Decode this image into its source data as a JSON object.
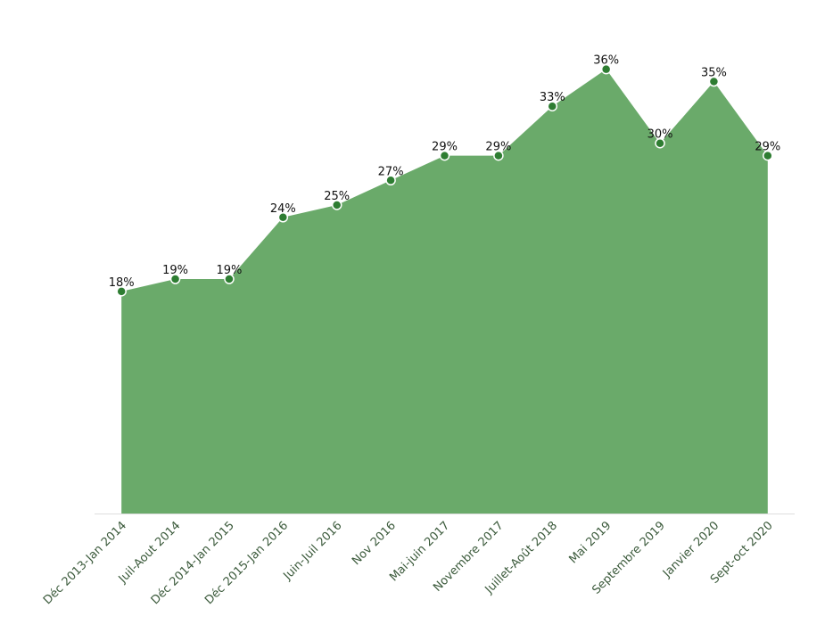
{
  "chart_data": {
    "type": "area",
    "categories": [
      "Déc 2013-Jan 2014",
      "Juil-Aout 2014",
      "Déc 2014-Jan 2015",
      "Déc 2015-Jan 2016",
      "Juin-Juil 2016",
      "Nov 2016",
      "Mai-juin 2017",
      "Novembre 2017",
      "Juillet-Août 2018",
      "Mai 2019",
      "Septembre 2019",
      "Janvier 2020",
      "Sept-oct 2020"
    ],
    "values": [
      18,
      19,
      19,
      24,
      25,
      27,
      29,
      29,
      33,
      36,
      30,
      35,
      29
    ],
    "value_labels": [
      "18%",
      "19%",
      "19%",
      "24%",
      "25%",
      "27%",
      "29%",
      "29%",
      "33%",
      "36%",
      "30%",
      "35%",
      "29%"
    ],
    "color": "#6aaa6a",
    "marker_color": "#2e7d32",
    "ylim": [
      0,
      38
    ]
  }
}
